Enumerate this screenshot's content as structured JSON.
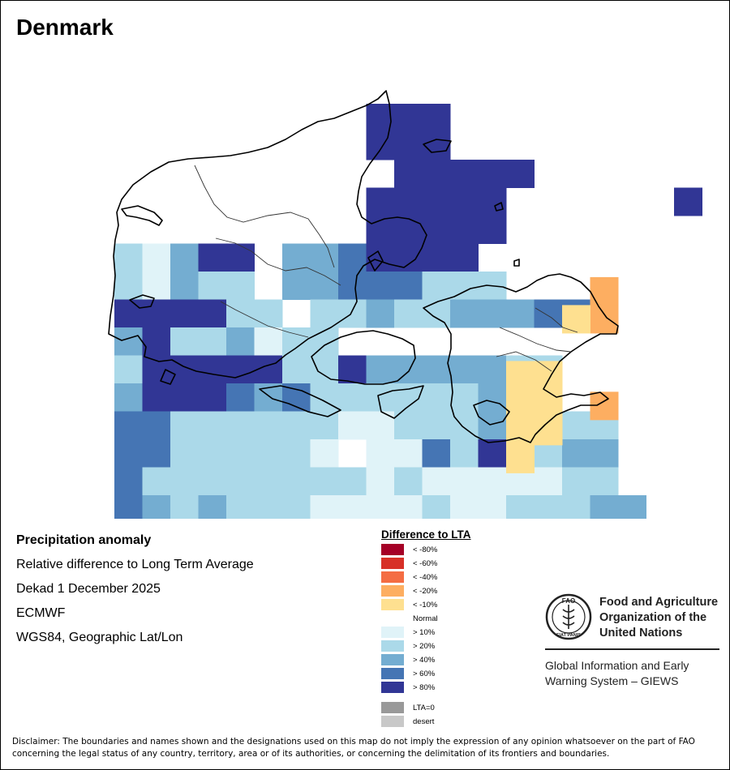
{
  "title": "Denmark",
  "info": {
    "heading": "Precipitation anomaly",
    "subtitle": "Relative difference to Long Term Average",
    "period": "Dekad 1 December 2025",
    "model": "ECMWF",
    "projection": "WGS84, Geographic Lat/Lon"
  },
  "legend": {
    "title": "Difference to LTA",
    "items": [
      {
        "label": "< -80%",
        "color": "#a50026"
      },
      {
        "label": "< -60%",
        "color": "#d73027"
      },
      {
        "label": "< -40%",
        "color": "#f46d43"
      },
      {
        "label": "< -20%",
        "color": "#fdae61"
      },
      {
        "label": "< -10%",
        "color": "#fee090"
      },
      {
        "label": "Normal",
        "color": "#ffffff"
      },
      {
        "label": "> 10%",
        "color": "#e0f3f8"
      },
      {
        "label": "> 20%",
        "color": "#abd9e9"
      },
      {
        "label": "> 40%",
        "color": "#74add1"
      },
      {
        "label": "> 60%",
        "color": "#4575b4"
      },
      {
        "label": "> 80%",
        "color": "#313695"
      }
    ],
    "extra": [
      {
        "label": "LTA=0",
        "color": "#999999"
      },
      {
        "label": "desert",
        "color": "#c8c8c8"
      }
    ]
  },
  "logo": {
    "acronym": "FAO",
    "motto": "FIAT PANIS",
    "org_name": "Food and Agriculture Organization of the United Nations",
    "program": "Global Information and Early Warning System – GIEWS"
  },
  "disclaimer": "Disclaimer: The boundaries and names shown and the designations used on this map do not imply the expression of any opinion whatsoever on the part of FAO concerning the legal status of any country, territory, area or of its authorities, or concerning the delimitation of its frontiers and boundaries.",
  "map_data": {
    "grid_rows": [
      "...........666..........",
      "...........656..........",
      "............65666.......",
      "...........55666......6.",
      "...........55566.......",
      "..21366.3345556........",
      "..21322.33444222.......",
      "..556622.22322333442...",
      "..35223122...",
      "..2556652263333322.....",
      "..3665434222222322.....",
      "..442222221122232222...",
      "..442222210114262233...",
      "..422222222121111122...",
      "..4323222111121122233..",
      "..2222221212221233.....",
      "...1222121112112.......",
      "...2222111111112.......",
      "....12.1.......1......."
    ]
  }
}
